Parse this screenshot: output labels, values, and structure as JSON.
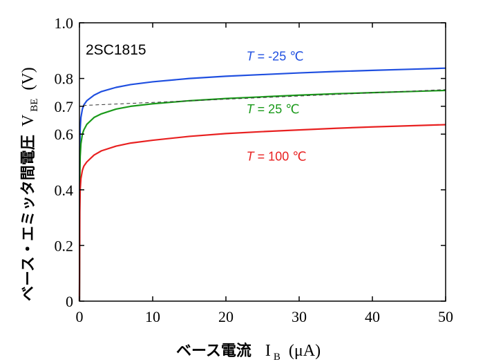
{
  "chart_data": {
    "type": "line",
    "model": "2SC1815",
    "xlabel": {
      "text": "ベース電流",
      "symbol": "I",
      "subscript": "B",
      "unit": "(μA)"
    },
    "ylabel": {
      "text": "ベース・エミッタ間電圧",
      "symbol": "V",
      "subscript": "BE",
      "unit": "(V)"
    },
    "xlim": [
      0,
      50
    ],
    "ylim": [
      0,
      1.0
    ],
    "xticks": [
      0,
      10,
      20,
      30,
      40,
      50
    ],
    "xtick_labels": [
      "0",
      "10",
      "20",
      "30",
      "40",
      "50"
    ],
    "yticks": [
      0,
      0.2,
      0.4,
      0.6,
      0.7,
      0.8,
      1.0
    ],
    "ytick_labels": [
      "0",
      "0.2",
      "0.4",
      "0.6",
      "0.7",
      "0.8",
      "1.0"
    ],
    "grid": false,
    "series": [
      {
        "name_italic": "T",
        "name_rest": " = -25 ℃",
        "color": "#1f4fe0",
        "x": [
          0,
          0.05,
          0.1,
          0.2,
          0.4,
          0.6,
          1,
          2,
          3,
          5,
          7,
          10,
          15,
          20,
          25,
          30,
          35,
          40,
          45,
          50
        ],
        "y": [
          0,
          0.55,
          0.62,
          0.66,
          0.69,
          0.705,
          0.72,
          0.74,
          0.753,
          0.768,
          0.778,
          0.788,
          0.8,
          0.808,
          0.814,
          0.82,
          0.825,
          0.829,
          0.833,
          0.837
        ]
      },
      {
        "name_italic": "T",
        "name_rest": " = 25 ℃",
        "color": "#1a9a1a",
        "x": [
          0,
          0.05,
          0.1,
          0.2,
          0.4,
          0.6,
          1,
          2,
          3,
          5,
          7,
          10,
          15,
          20,
          25,
          30,
          35,
          40,
          45,
          50
        ],
        "y": [
          0,
          0.45,
          0.52,
          0.565,
          0.6,
          0.615,
          0.635,
          0.66,
          0.673,
          0.69,
          0.7,
          0.709,
          0.72,
          0.728,
          0.734,
          0.74,
          0.745,
          0.749,
          0.753,
          0.757
        ]
      },
      {
        "name_italic": "T",
        "name_rest": " = 100 ℃",
        "color": "#e82020",
        "x": [
          0,
          0.05,
          0.1,
          0.2,
          0.4,
          0.6,
          1,
          2,
          3,
          5,
          7,
          10,
          15,
          20,
          25,
          30,
          35,
          40,
          45,
          50
        ],
        "y": [
          0,
          0.32,
          0.4,
          0.44,
          0.47,
          0.485,
          0.5,
          0.525,
          0.54,
          0.557,
          0.568,
          0.578,
          0.592,
          0.602,
          0.609,
          0.615,
          0.621,
          0.626,
          0.63,
          0.634
        ]
      }
    ],
    "reference_line": {
      "style": "dashed",
      "color": "#333333",
      "x": [
        0.5,
        50
      ],
      "y": [
        0.703,
        0.76
      ]
    }
  }
}
